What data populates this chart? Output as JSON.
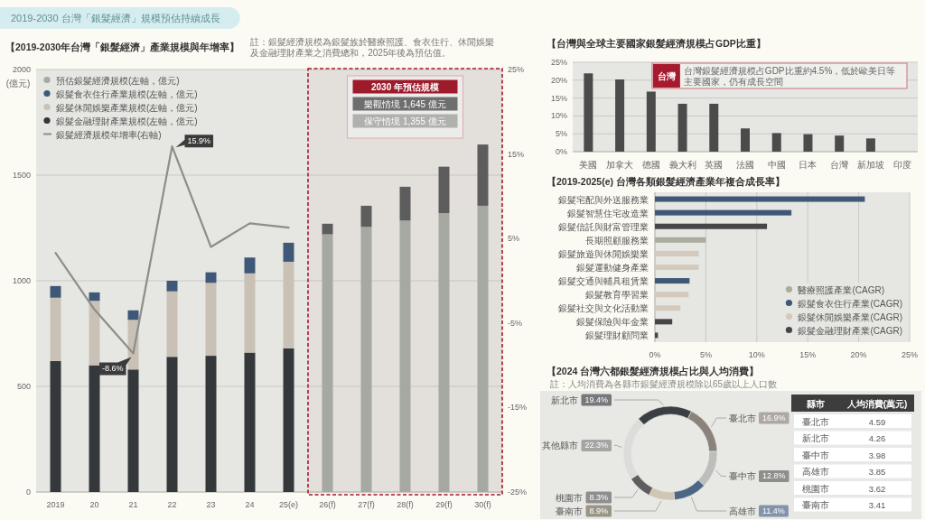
{
  "chart_data": [
    {
      "type": "bar",
      "stacked": true,
      "title": "2019-2030 台灣「銀髮經濟」規模預估持續成長",
      "subtitle": "【2019-2030年台灣「銀髮經濟」產業規模與年增率】",
      "annotations": [
        "註：銀髮經濟規模為銀髮族於醫療照護、食衣住行、休閒娛樂及金融理財產業之消費總和，2025年後為預估值。",
        "2030 年預估規模",
        "樂觀情境 1,645 億元",
        "保守情境 1,355 億元"
      ],
      "categories": [
        "2019",
        "20",
        "21",
        "22",
        "23",
        "24",
        "25(e)",
        "26(f)",
        "27(f)",
        "28(f)",
        "29(f)",
        "30(f)"
      ],
      "series": [
        {
          "name": "銀髮金融理財產業規模(左軸，億元)",
          "color": "#35383b",
          "values": [
            620,
            600,
            580,
            640,
            645,
            660,
            680,
            null,
            null,
            null,
            null,
            null
          ]
        },
        {
          "name": "銀髮休閒娛樂產業規模(左軸，億元)",
          "color": "#c9c1b5",
          "values": [
            300,
            305,
            235,
            310,
            345,
            375,
            410,
            null,
            null,
            null,
            null,
            null
          ]
        },
        {
          "name": "銀髮食衣住行產業規模(左軸，億元)",
          "color": "#3f5877",
          "values": [
            55,
            40,
            45,
            50,
            50,
            75,
            90,
            null,
            null,
            null,
            null,
            null
          ]
        },
        {
          "name": "預估銀髮經濟規模(左軸，億元)",
          "color": "#a6a8a2",
          "values": [
            null,
            null,
            null,
            null,
            null,
            null,
            null,
            1220,
            1255,
            1285,
            1320,
            1355
          ]
        },
        {
          "color": "#5d5d5d",
          "values": [
            null,
            null,
            null,
            null,
            null,
            null,
            null,
            50,
            100,
            160,
            220,
            290
          ]
        },
        {
          "name": "銀髮經濟規模年增率(右軸)",
          "type": "line",
          "axis": "y2",
          "color": "#8d8d89",
          "values": [
            3.3,
            -3.4,
            -8.6,
            15.9,
            4.0,
            6.8,
            6.3,
            null,
            null,
            null,
            null,
            null
          ],
          "value_labels": [
            null,
            null,
            "-8.6%",
            "15.9%",
            null,
            null,
            null,
            null,
            null,
            null,
            null,
            null
          ]
        }
      ],
      "ylim": [
        0,
        2000
      ],
      "yticks": [
        0,
        500,
        1000,
        1500,
        2000
      ],
      "ylabel": "(億元)",
      "y2lim": [
        -25,
        25
      ],
      "y2ticks": [
        {
          "value": -25,
          "label": "-25%"
        },
        {
          "value": -15,
          "label": "-15%"
        },
        {
          "value": -5,
          "label": "-5%"
        },
        {
          "value": 5,
          "label": "5%"
        },
        {
          "value": 15,
          "label": "15%"
        },
        {
          "value": 25,
          "label": "25%"
        }
      ],
      "grid": "y",
      "legend": "top left",
      "bands": [
        {
          "axis": "x",
          "from": "26(f)",
          "to": "30(f)",
          "color": "#a6192e"
        }
      ]
    },
    {
      "type": "bar",
      "title": "【台灣與全球主要國家銀髮經濟規模占GDP比重】",
      "categories": [
        "美國",
        "加拿大",
        "德國",
        "義大利",
        "英國",
        "法國",
        "中國",
        "日本",
        "台灣",
        "新加坡",
        "印度"
      ],
      "values": [
        21.9,
        20.2,
        16.8,
        13.4,
        13.4,
        6.5,
        5.2,
        4.9,
        4.5,
        3.7,
        null
      ],
      "color": "#4b4b4b",
      "ylim": [
        0,
        25
      ],
      "yticks": [
        {
          "value": 0,
          "label": "0%"
        },
        {
          "value": 5,
          "label": "5%"
        },
        {
          "value": 10,
          "label": "10%"
        },
        {
          "value": 15,
          "label": "15%"
        },
        {
          "value": 20,
          "label": "20%"
        },
        {
          "value": 25,
          "label": "25%"
        }
      ],
      "grid": "y",
      "annotations": [
        "台灣",
        "台灣銀髮經濟規模占GDP比重約4.5%，低於歐美日等主要國家，仍有成長空間"
      ]
    },
    {
      "type": "bar",
      "orientation": "horizontal",
      "title": "【2019-2025(e) 台灣各類銀髮經濟產業年複合成長率】",
      "categories": [
        "銀髮宅配與外送服務業",
        "銀髮智慧住宅改造業",
        "銀髮信託與財富管理業",
        "長期照顧服務業",
        "銀髮旅遊與休閒娛樂業",
        "銀髮運動健身產業",
        "銀髮交通與輔具租賃業",
        "銀髮教育學習業",
        "銀髮社交與文化活動業",
        "銀髮保險與年金業",
        "銀髮理財顧問業"
      ],
      "series": [
        {
          "name": "醫療照護產業(CAGR)",
          "color": "#a9ad9c",
          "values": [
            null,
            null,
            null,
            5.0,
            null,
            null,
            null,
            null,
            null,
            null,
            null
          ]
        },
        {
          "name": "銀髮食衣住行產業(CAGR)",
          "color": "#3f5877",
          "values": [
            20.6,
            13.4,
            null,
            null,
            null,
            null,
            3.4,
            null,
            null,
            null,
            null
          ]
        },
        {
          "name": "銀髮休閒娛樂產業(CAGR)",
          "color": "#d3cabd",
          "values": [
            null,
            null,
            null,
            null,
            4.3,
            4.3,
            null,
            3.3,
            2.5,
            null,
            null
          ]
        },
        {
          "name": "銀髮金融理財產業(CAGR)",
          "color": "#454648",
          "values": [
            null,
            null,
            11.0,
            null,
            null,
            null,
            null,
            null,
            null,
            1.7,
            0.3
          ]
        }
      ],
      "xlim": [
        0,
        25
      ],
      "xticks": [
        {
          "value": 0,
          "label": "0%"
        },
        {
          "value": 5,
          "label": "5%"
        },
        {
          "value": 10,
          "label": "10%"
        },
        {
          "value": 15,
          "label": "15%"
        },
        {
          "value": 20,
          "label": "20%"
        },
        {
          "value": 25,
          "label": "25%"
        }
      ],
      "grid": "x",
      "legend": "bottom right"
    },
    {
      "type": "donut",
      "title": "【2024 台灣六都銀髮經濟規模占比與人均消費】",
      "subtitle": "註：人均消費為各縣市銀髮經濟規模除以65歲以上人口數",
      "categories": [
        "新北市",
        "臺北市",
        "臺中市",
        "高雄市",
        "臺南市",
        "桃園市",
        "其他縣市"
      ],
      "values": [
        19.4,
        16.9,
        12.8,
        11.4,
        8.9,
        8.3,
        22.3
      ],
      "colors": [
        "#3b3e42",
        "#8a837c",
        "#bdbdbb",
        "#4d6684",
        "#cfc6b4",
        "#5e5e5e",
        "#dcdcda"
      ],
      "value_labels": [
        "19.4%",
        "16.9%",
        "12.8%",
        "11.4%",
        "8.9%",
        "8.3%",
        "22.3%"
      ]
    },
    {
      "type": "other",
      "xlabel": "縣市",
      "ylabel": "人均消費(萬元)",
      "categories": [
        "臺北市",
        "新北市",
        "臺中市",
        "高雄市",
        "桃園市",
        "臺南市"
      ],
      "values": [
        4.59,
        4.26,
        3.98,
        3.85,
        3.62,
        3.41
      ],
      "data_labels": true
    }
  ]
}
